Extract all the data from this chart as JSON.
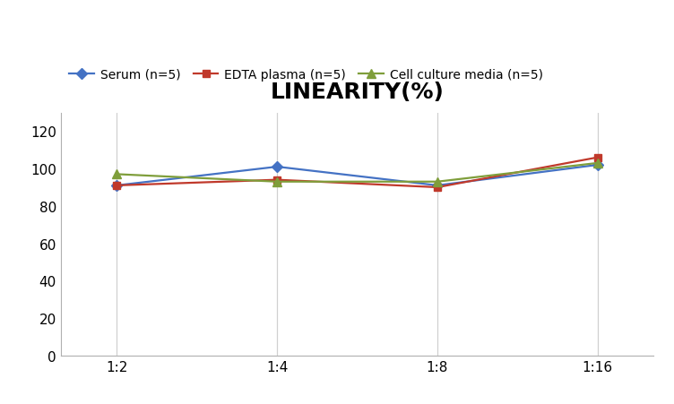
{
  "title": "LINEARITY(%)",
  "x_labels": [
    "1:2",
    "1:4",
    "1:8",
    "1:16"
  ],
  "series": [
    {
      "label": "Serum (n=5)",
      "values": [
        91,
        101,
        91,
        102
      ],
      "color": "#4472C4",
      "marker": "D",
      "markersize": 6
    },
    {
      "label": "EDTA plasma (n=5)",
      "values": [
        91,
        94,
        90,
        106
      ],
      "color": "#C0392B",
      "marker": "s",
      "markersize": 6
    },
    {
      "label": "Cell culture media (n=5)",
      "values": [
        97,
        93,
        93,
        103
      ],
      "color": "#7F9E3B",
      "marker": "^",
      "markersize": 7
    }
  ],
  "ylim": [
    0,
    130
  ],
  "yticks": [
    0,
    20,
    40,
    60,
    80,
    100,
    120
  ],
  "background_color": "#ffffff",
  "grid_color": "#d0d0d0",
  "title_fontsize": 18,
  "legend_fontsize": 10,
  "tick_fontsize": 11
}
